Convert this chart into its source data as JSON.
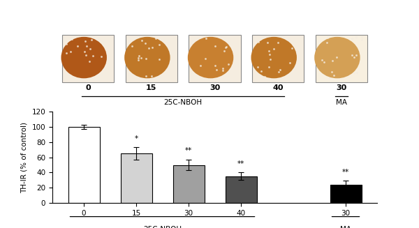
{
  "bar_labels": [
    "0",
    "15",
    "30",
    "40",
    "30"
  ],
  "bar_values": [
    100,
    65,
    50,
    35,
    24
  ],
  "bar_errors": [
    3,
    8,
    7,
    5,
    5
  ],
  "bar_colors": [
    "#ffffff",
    "#d3d3d3",
    "#a0a0a0",
    "#505050",
    "#000000"
  ],
  "bar_edge_colors": [
    "#000000",
    "#000000",
    "#000000",
    "#000000",
    "#000000"
  ],
  "significance": [
    "",
    "*",
    "**",
    "**",
    "**"
  ],
  "ylabel": "TH-IR (% of control)",
  "ylim": [
    0,
    120
  ],
  "yticks": [
    0,
    20,
    40,
    60,
    80,
    100,
    120
  ],
  "xlabel_items": [
    "0",
    "15",
    "30",
    "40",
    "30"
  ],
  "image_labels": [
    "0",
    "15",
    "30",
    "40",
    "30"
  ],
  "bg_color": "#ffffff",
  "bar_width": 0.6,
  "panel_img_colors": [
    "#b05818",
    "#c07828",
    "#c88030",
    "#c07828",
    "#d4a055"
  ],
  "panel_bg_colors": [
    "#f5ede0",
    "#f5ede0",
    "#f5ede0",
    "#f5ede0",
    "#f8f0e0"
  ]
}
